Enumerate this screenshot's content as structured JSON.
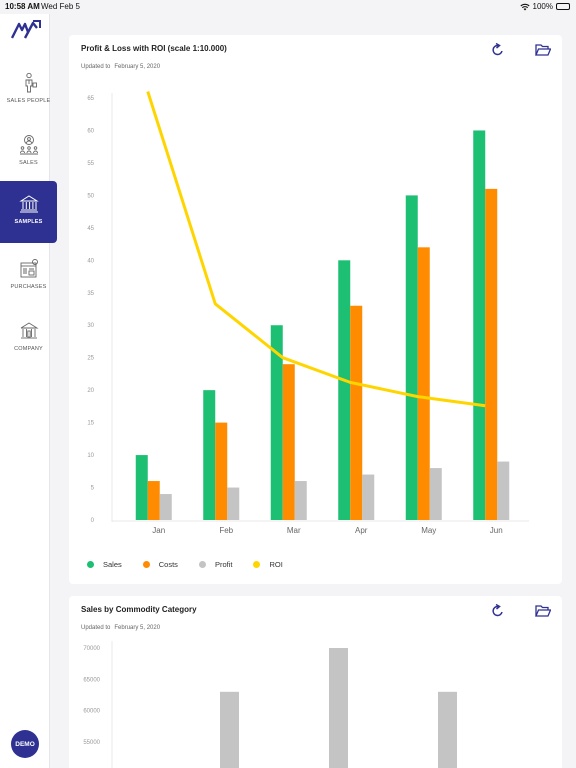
{
  "status_bar": {
    "time": "10:58 AM",
    "date": "Wed Feb 5",
    "battery": "100%"
  },
  "sidebar": {
    "items": [
      {
        "label": "SALES PEOPLE",
        "icon": "salesperson-icon",
        "active": false
      },
      {
        "label": "SALES",
        "icon": "team-icon",
        "active": false
      },
      {
        "label": "SAMPLES",
        "icon": "bank-icon",
        "active": true
      },
      {
        "label": "PURCHASES",
        "icon": "purchase-icon",
        "active": false
      },
      {
        "label": "COMPANY",
        "icon": "building-icon",
        "active": false
      }
    ],
    "demo_label": "DEMO",
    "accent_color": "#2e3192"
  },
  "card1": {
    "title": "Profit & Loss with ROI (scale 1:10.000)",
    "updated_label": "Updated to",
    "updated_date": "February 5, 2020"
  },
  "card2": {
    "title": "Sales by Commodity Category",
    "updated_label": "Updated to",
    "updated_date": "February 5, 2020"
  },
  "chart_data": [
    {
      "type": "bar",
      "title": "Profit & Loss with ROI (scale 1:10.000)",
      "categories": [
        "Jan",
        "Feb",
        "Mar",
        "Apr",
        "May",
        "Jun"
      ],
      "series": [
        {
          "name": "Sales",
          "type": "bar",
          "color": "#1dbf73",
          "values": [
            10,
            20,
            30,
            40,
            50,
            60
          ]
        },
        {
          "name": "Costs",
          "type": "bar",
          "color": "#ff8c00",
          "values": [
            6,
            15,
            24,
            33,
            42,
            51
          ]
        },
        {
          "name": "Profit",
          "type": "bar",
          "color": "#c4c4c4",
          "values": [
            4,
            5,
            6,
            7,
            8,
            9
          ]
        },
        {
          "name": "ROI",
          "type": "line",
          "color": "#ffd500",
          "values": [
            66,
            33.3,
            25,
            21.2,
            19,
            17.6
          ]
        }
      ],
      "yticks": [
        0,
        5,
        10,
        15,
        20,
        25,
        30,
        35,
        40,
        45,
        50,
        55,
        60,
        65
      ],
      "ylim": [
        0,
        65
      ],
      "legend": "bottom-left",
      "grid": false
    },
    {
      "type": "bar",
      "title": "Sales by Commodity Category",
      "yticks": [
        55000,
        60000,
        65000,
        70000
      ],
      "ylim": [
        50000,
        70000
      ],
      "series": [
        {
          "color": "#c4c4c4",
          "values": [
            63000,
            70000,
            63000
          ]
        }
      ]
    }
  ]
}
